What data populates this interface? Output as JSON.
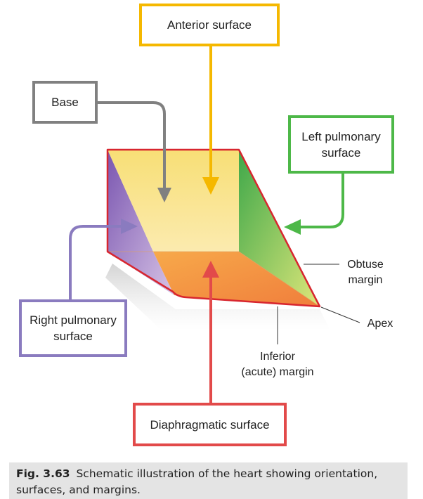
{
  "labels": {
    "anterior": "Anterior surface",
    "base": "Base",
    "left_pulmonary_line1": "Left pulmonary",
    "left_pulmonary_line2": "surface",
    "right_pulmonary_line1": "Right pulmonary",
    "right_pulmonary_line2": "surface",
    "diaphragmatic": "Diaphragmatic surface",
    "obtuse_line1": "Obtuse",
    "obtuse_line2": "margin",
    "apex": "Apex",
    "inferior_line1": "Inferior",
    "inferior_line2": "(acute) margin"
  },
  "caption": {
    "fig_number": "Fig. 3.63",
    "text": "Schematic illustration of the heart showing orientation, surfaces, and margins."
  },
  "colors": {
    "anterior": "#f5b800",
    "base": "#808080",
    "left_pulmonary": "#4db848",
    "right_pulmonary": "#8a7bbf",
    "diaphragmatic": "#e24a4a",
    "heart_outline": "#d8262f"
  }
}
